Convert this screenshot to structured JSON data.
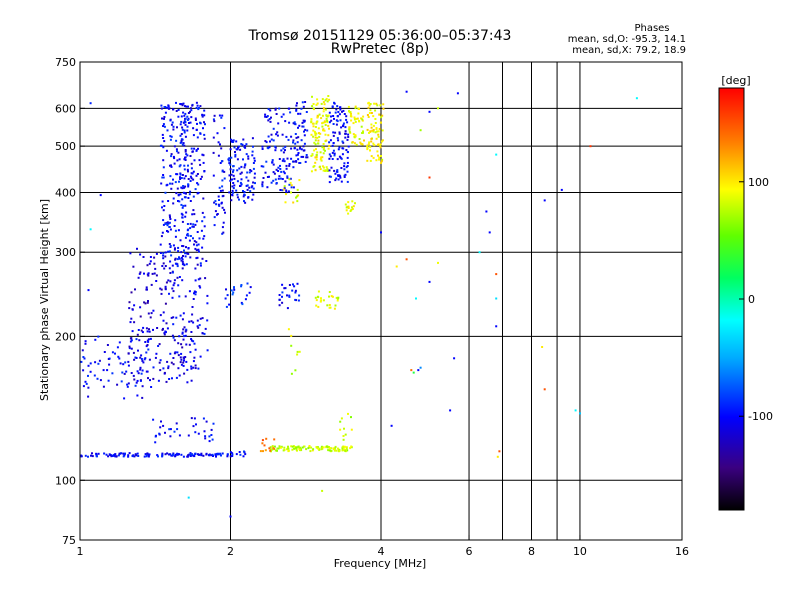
{
  "chart_data": {
    "type": "scatter",
    "title": "Tromsø 20151129 05:36:00–05:37:43",
    "subtitle": "RwPretec (8p)",
    "xlabel": "Frequency [MHz]",
    "ylabel": "Stationary phase Virtual Height [km]",
    "x_scale": "log",
    "y_scale": "log",
    "xlim": [
      1,
      16
    ],
    "ylim": [
      75,
      750
    ],
    "x_ticks": [
      1,
      2,
      4,
      6,
      8,
      10,
      16
    ],
    "x_gridlines": [
      2,
      4,
      6,
      7,
      8,
      9,
      10
    ],
    "y_ticks": [
      75,
      100,
      200,
      300,
      400,
      500,
      600,
      750
    ],
    "y_gridlines": [
      100,
      200,
      300,
      400,
      500,
      600
    ],
    "grid": true,
    "stats": {
      "heading": "Phases",
      "line1": "mean, sd,O:  -95.3, 14.1",
      "line2": "mean, sd,X:  79.2, 18.9"
    },
    "colorbar": {
      "label": "[deg]",
      "min": -180,
      "max": 180,
      "ticks": [
        100,
        0,
        -100
      ]
    },
    "clusters": [
      {
        "x0": 1.0,
        "x1": 1.9,
        "y0": 112,
        "y1": 114,
        "phase": -100,
        "n": 130
      },
      {
        "x0": 1.9,
        "x1": 2.15,
        "y0": 112,
        "y1": 115,
        "phase": -100,
        "n": 18
      },
      {
        "x0": 2.4,
        "x1": 3.5,
        "y0": 115,
        "y1": 118,
        "phase": 80,
        "n": 110
      },
      {
        "x0": 2.3,
        "x1": 2.5,
        "y0": 115,
        "y1": 123,
        "phase": 140,
        "n": 12
      },
      {
        "x0": 1.0,
        "x1": 1.4,
        "y0": 148,
        "y1": 200,
        "phase": -100,
        "n": 80
      },
      {
        "x0": 1.25,
        "x1": 1.7,
        "y0": 160,
        "y1": 210,
        "phase": -110,
        "n": 90
      },
      {
        "x0": 1.5,
        "x1": 1.8,
        "y0": 170,
        "y1": 300,
        "phase": -105,
        "n": 110
      },
      {
        "x0": 1.25,
        "x1": 1.5,
        "y0": 205,
        "y1": 300,
        "phase": -115,
        "n": 70
      },
      {
        "x0": 1.45,
        "x1": 1.65,
        "y0": 280,
        "y1": 620,
        "phase": -100,
        "n": 220
      },
      {
        "x0": 1.6,
        "x1": 1.78,
        "y0": 300,
        "y1": 620,
        "phase": -100,
        "n": 140
      },
      {
        "x0": 1.85,
        "x1": 1.95,
        "y0": 320,
        "y1": 600,
        "phase": -100,
        "n": 50
      },
      {
        "x0": 1.98,
        "x1": 2.25,
        "y0": 380,
        "y1": 520,
        "phase": -100,
        "n": 110
      },
      {
        "x0": 2.3,
        "x1": 2.7,
        "y0": 400,
        "y1": 600,
        "phase": -100,
        "n": 120
      },
      {
        "x0": 2.7,
        "x1": 2.85,
        "y0": 460,
        "y1": 620,
        "phase": -100,
        "n": 50
      },
      {
        "x0": 2.9,
        "x1": 3.15,
        "y0": 440,
        "y1": 640,
        "phase": 90,
        "n": 120
      },
      {
        "x0": 3.15,
        "x1": 3.45,
        "y0": 420,
        "y1": 620,
        "phase": -100,
        "n": 110
      },
      {
        "x0": 3.45,
        "x1": 3.7,
        "y0": 500,
        "y1": 610,
        "phase": 90,
        "n": 50
      },
      {
        "x0": 3.75,
        "x1": 4.05,
        "y0": 460,
        "y1": 620,
        "phase": 95,
        "n": 80
      },
      {
        "x0": 2.55,
        "x1": 2.75,
        "y0": 380,
        "y1": 430,
        "phase": 90,
        "n": 15
      },
      {
        "x0": 3.4,
        "x1": 3.55,
        "y0": 360,
        "y1": 390,
        "phase": 90,
        "n": 15
      },
      {
        "x0": 2.5,
        "x1": 2.75,
        "y0": 228,
        "y1": 260,
        "phase": -100,
        "n": 25
      },
      {
        "x0": 2.95,
        "x1": 3.3,
        "y0": 228,
        "y1": 250,
        "phase": 85,
        "n": 25
      },
      {
        "x0": 1.95,
        "x1": 2.2,
        "y0": 228,
        "y1": 260,
        "phase": -90,
        "n": 20
      },
      {
        "x0": 1.4,
        "x1": 1.85,
        "y0": 120,
        "y1": 135,
        "phase": -100,
        "n": 35
      },
      {
        "x0": 3.3,
        "x1": 3.5,
        "y0": 118,
        "y1": 140,
        "phase": 80,
        "n": 10
      },
      {
        "x0": 2.6,
        "x1": 2.8,
        "y0": 165,
        "y1": 210,
        "phase": 80,
        "n": 8
      }
    ],
    "scattered_points": [
      {
        "x": 1.05,
        "y": 615,
        "phase": -90
      },
      {
        "x": 1.1,
        "y": 395,
        "phase": -100
      },
      {
        "x": 1.05,
        "y": 335,
        "phase": -20
      },
      {
        "x": 1.04,
        "y": 250,
        "phase": -100
      },
      {
        "x": 1.65,
        "y": 92,
        "phase": -30
      },
      {
        "x": 2.0,
        "y": 84,
        "phase": -100
      },
      {
        "x": 3.05,
        "y": 95,
        "phase": 80
      },
      {
        "x": 4.2,
        "y": 130,
        "phase": -100
      },
      {
        "x": 4.6,
        "y": 170,
        "phase": 140
      },
      {
        "x": 4.75,
        "y": 170,
        "phase": -100
      },
      {
        "x": 4.65,
        "y": 168,
        "phase": 30
      },
      {
        "x": 4.8,
        "y": 172,
        "phase": -60
      },
      {
        "x": 5.0,
        "y": 260,
        "phase": -100
      },
      {
        "x": 5.2,
        "y": 285,
        "phase": 90
      },
      {
        "x": 5.6,
        "y": 180,
        "phase": -100
      },
      {
        "x": 5.5,
        "y": 140,
        "phase": -100
      },
      {
        "x": 4.5,
        "y": 290,
        "phase": 150
      },
      {
        "x": 4.3,
        "y": 280,
        "phase": 100
      },
      {
        "x": 4.7,
        "y": 240,
        "phase": -20
      },
      {
        "x": 4.5,
        "y": 650,
        "phase": -100
      },
      {
        "x": 5.0,
        "y": 590,
        "phase": -100
      },
      {
        "x": 5.2,
        "y": 600,
        "phase": 80
      },
      {
        "x": 4.8,
        "y": 540,
        "phase": 70
      },
      {
        "x": 5.0,
        "y": 430,
        "phase": 160
      },
      {
        "x": 5.7,
        "y": 645,
        "phase": -100
      },
      {
        "x": 6.3,
        "y": 300,
        "phase": -20
      },
      {
        "x": 6.5,
        "y": 365,
        "phase": -100
      },
      {
        "x": 6.6,
        "y": 330,
        "phase": -100
      },
      {
        "x": 6.8,
        "y": 480,
        "phase": -20
      },
      {
        "x": 6.8,
        "y": 270,
        "phase": 150
      },
      {
        "x": 6.8,
        "y": 240,
        "phase": -30
      },
      {
        "x": 6.8,
        "y": 210,
        "phase": -100
      },
      {
        "x": 6.9,
        "y": 115,
        "phase": 150
      },
      {
        "x": 6.85,
        "y": 112,
        "phase": 100
      },
      {
        "x": 8.5,
        "y": 385,
        "phase": -100
      },
      {
        "x": 8.4,
        "y": 190,
        "phase": 100
      },
      {
        "x": 8.5,
        "y": 155,
        "phase": 150
      },
      {
        "x": 9.2,
        "y": 405,
        "phase": -100
      },
      {
        "x": 9.8,
        "y": 140,
        "phase": -20
      },
      {
        "x": 10.0,
        "y": 138,
        "phase": -40
      },
      {
        "x": 10.5,
        "y": 500,
        "phase": 160
      },
      {
        "x": 13.0,
        "y": 630,
        "phase": -20
      },
      {
        "x": 1.3,
        "y": 305,
        "phase": -110
      },
      {
        "x": 4.0,
        "y": 330,
        "phase": -100
      }
    ]
  }
}
